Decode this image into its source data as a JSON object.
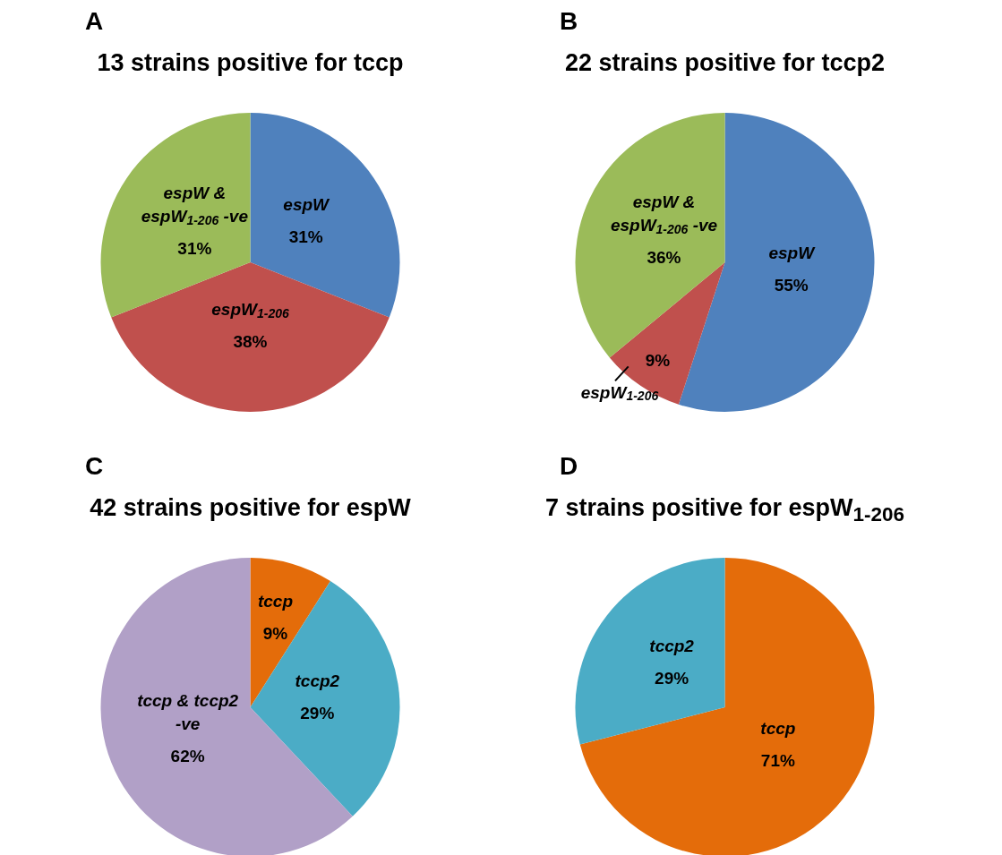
{
  "chart_data": [
    {
      "type": "pie",
      "title": "13 strains positive for tccp",
      "annotations": [
        "A"
      ],
      "categories": [
        "espW",
        "espW$_{1-206}$",
        "espW & espW$_{1-206}$ -ve"
      ],
      "values": [
        31,
        38,
        31
      ],
      "value_labels": [
        "31%",
        "38%",
        "31%"
      ],
      "colors": [
        "#4f81bd",
        "#c0504d",
        "#9bbb59"
      ],
      "legend": false
    },
    {
      "type": "pie",
      "title": "22 strains positive for tccp2",
      "annotations": [
        "B"
      ],
      "categories": [
        "espW",
        "espW$_{1-206}$",
        "espW & espW$_{1-206}$ -ve"
      ],
      "values": [
        55,
        9,
        36
      ],
      "value_labels": [
        "55%",
        "9%",
        "36%"
      ],
      "colors": [
        "#4f81bd",
        "#c0504d",
        "#9bbb59"
      ],
      "legend": false
    },
    {
      "type": "pie",
      "title": "42 strains positive for espW",
      "annotations": [
        "C"
      ],
      "categories": [
        "tccp",
        "tccp2",
        "tccp & tccp2 -ve"
      ],
      "values": [
        9,
        29,
        62
      ],
      "value_labels": [
        "9%",
        "29%",
        "62%"
      ],
      "colors": [
        "#e46c0a",
        "#4bacc6",
        "#b1a0c7"
      ],
      "legend": false
    },
    {
      "type": "pie",
      "title": "7 strains positive for espW$_{1-206}$",
      "annotations": [
        "D"
      ],
      "categories": [
        "tccp",
        "tccp2"
      ],
      "values": [
        71,
        29
      ],
      "value_labels": [
        "71%",
        "29%"
      ],
      "colors": [
        "#e46c0a",
        "#4bacc6"
      ],
      "legend": false
    }
  ]
}
